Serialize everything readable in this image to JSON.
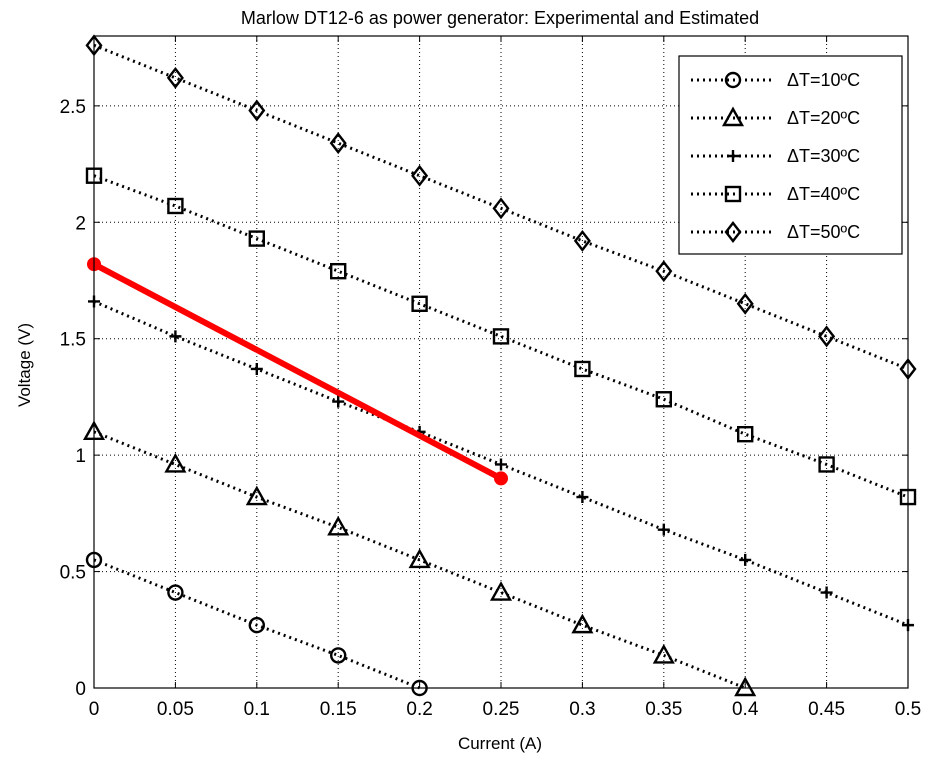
{
  "chart_data": {
    "type": "line",
    "title": "Marlow DT12-6 as power generator: Experimental and Estimated",
    "xlabel": "Current (A)",
    "ylabel": "Voltage (V)",
    "xlim": [
      0,
      0.5
    ],
    "ylim": [
      0,
      2.8
    ],
    "xticks": [
      0,
      0.05,
      0.1,
      0.15,
      0.2,
      0.25,
      0.3,
      0.35,
      0.4,
      0.45,
      0.5
    ],
    "xtick_labels": [
      "0",
      "0.05",
      "0.1",
      "0.15",
      "0.2",
      "0.25",
      "0.3",
      "0.35",
      "0.4",
      "0.45",
      "0.5"
    ],
    "yticks": [
      0,
      0.5,
      1,
      1.5,
      2,
      2.5
    ],
    "ytick_labels": [
      "0",
      "0.5",
      "1",
      "1.5",
      "2",
      "2.5"
    ],
    "grid": true,
    "legend_position": "top-right",
    "series": [
      {
        "name": "ΔT=10ºC",
        "marker": "circle",
        "line": "dotted",
        "color": "#000000",
        "x": [
          0,
          0.05,
          0.1,
          0.15,
          0.2
        ],
        "y": [
          0.55,
          0.41,
          0.27,
          0.14,
          0.0
        ]
      },
      {
        "name": "ΔT=20ºC",
        "marker": "triangle",
        "line": "dotted",
        "color": "#000000",
        "x": [
          0,
          0.05,
          0.1,
          0.15,
          0.2,
          0.25,
          0.3,
          0.35,
          0.4
        ],
        "y": [
          1.1,
          0.96,
          0.82,
          0.69,
          0.55,
          0.41,
          0.27,
          0.14,
          0.0
        ]
      },
      {
        "name": "ΔT=30ºC",
        "marker": "plus",
        "line": "dotted",
        "color": "#000000",
        "x": [
          0,
          0.05,
          0.1,
          0.15,
          0.2,
          0.25,
          0.3,
          0.35,
          0.4,
          0.45,
          0.5
        ],
        "y": [
          1.66,
          1.51,
          1.37,
          1.23,
          1.1,
          0.96,
          0.82,
          0.68,
          0.55,
          0.41,
          0.27
        ]
      },
      {
        "name": "ΔT=40ºC",
        "marker": "square",
        "line": "dotted",
        "color": "#000000",
        "x": [
          0,
          0.05,
          0.1,
          0.15,
          0.2,
          0.25,
          0.3,
          0.35,
          0.4,
          0.45,
          0.5
        ],
        "y": [
          2.2,
          2.07,
          1.93,
          1.79,
          1.65,
          1.51,
          1.37,
          1.24,
          1.09,
          0.96,
          0.82
        ]
      },
      {
        "name": "ΔT=50ºC",
        "marker": "diamond",
        "line": "dotted",
        "color": "#000000",
        "x": [
          0,
          0.05,
          0.1,
          0.15,
          0.2,
          0.25,
          0.3,
          0.35,
          0.4,
          0.45,
          0.5
        ],
        "y": [
          2.76,
          2.62,
          2.48,
          2.34,
          2.2,
          2.06,
          1.92,
          1.79,
          1.65,
          1.51,
          1.37
        ]
      },
      {
        "marker": "dot-ends",
        "line": "solid",
        "color": "#ff0000",
        "x": [
          0,
          0.25
        ],
        "y": [
          1.82,
          0.9
        ]
      }
    ]
  }
}
